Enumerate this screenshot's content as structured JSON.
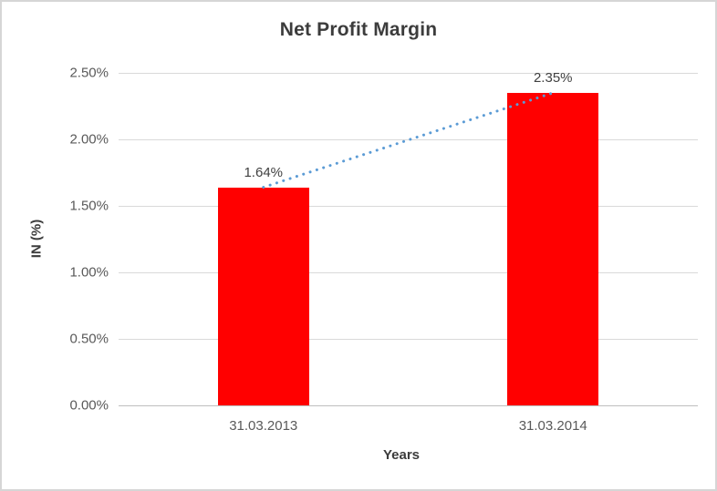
{
  "chart_data": {
    "type": "bar",
    "title": "Net Profit Margin",
    "xlabel": "Years",
    "ylabel": "IN (%)",
    "categories": [
      "31.03.2013",
      "31.03.2014"
    ],
    "values": [
      1.64,
      2.35
    ],
    "data_labels": [
      "1.64%",
      "2.35%"
    ],
    "y_axis": {
      "min": 0,
      "max": 2.5,
      "step": 0.5,
      "tick_labels": [
        "0.00%",
        "0.50%",
        "1.00%",
        "1.50%",
        "2.00%",
        "2.50%"
      ]
    },
    "grid": true,
    "legend": "none",
    "bar_color": "#ff0000",
    "trendline": {
      "style": "dotted",
      "color": "#5b9bd5",
      "from_value": 1.64,
      "to_value": 2.35
    },
    "text_colors": {
      "title": "#3c3c3c",
      "ticks": "#595959",
      "data_labels": "#404040"
    },
    "gridline_color": "#d9d9d9",
    "axis_line_color": "#bfbfbf"
  }
}
